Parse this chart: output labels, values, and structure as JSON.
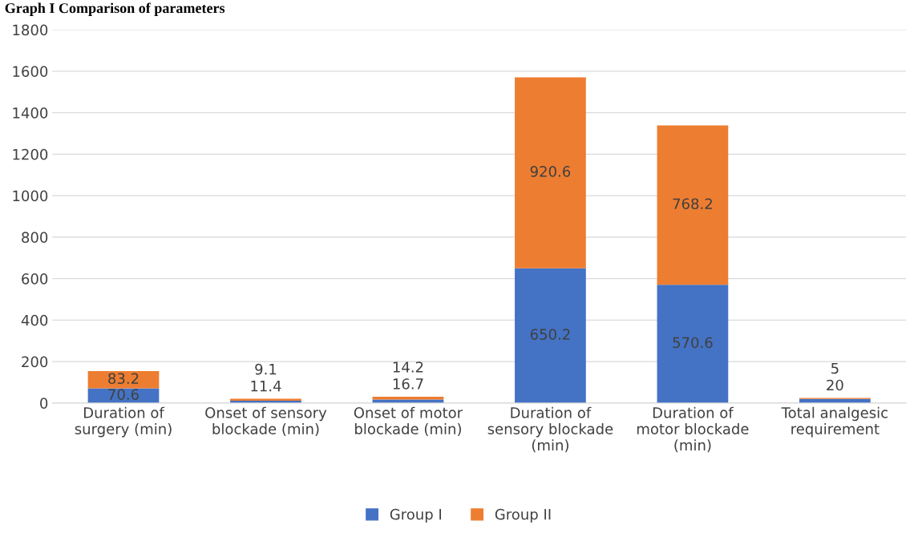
{
  "chart_data": {
    "type": "bar",
    "title": "Graph I Comparison of parameters",
    "stacked": true,
    "categories": [
      "Duration of\nsurgery (min)",
      "Onset of sensory\nblockade (min)",
      "Onset of motor\nblockade (min)",
      "Duration of\nsensory blockade\n(min)",
      "Duration of\nmotor blockade\n(min)",
      "Total analgesic\nrequirement"
    ],
    "series": [
      {
        "name": "Group I",
        "color": "#4472c4",
        "values": [
          70.6,
          11.4,
          16.7,
          650.2,
          570.6,
          20
        ]
      },
      {
        "name": "Group II",
        "color": "#ed7d31",
        "values": [
          83.2,
          9.1,
          14.2,
          920.6,
          768.2,
          5
        ]
      }
    ],
    "ylim": [
      0,
      1800
    ],
    "yticks": [
      0,
      200,
      400,
      600,
      800,
      1000,
      1200,
      1400,
      1600,
      1800
    ],
    "grid": "y",
    "legend": "bottom",
    "data_labels": true
  }
}
